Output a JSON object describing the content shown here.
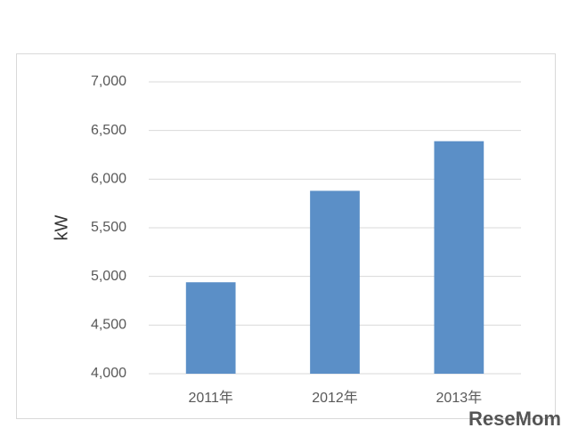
{
  "chart_data": {
    "type": "bar",
    "y_label": "kW",
    "categories": [
      "2011年",
      "2012年",
      "2013年"
    ],
    "values": [
      4940,
      5880,
      6390
    ],
    "color": "#5b8fc7",
    "ylim": [
      4000,
      7000
    ],
    "yticks": [
      {
        "value": 4000,
        "label": "4,000"
      },
      {
        "value": 4500,
        "label": "4,500"
      },
      {
        "value": 5000,
        "label": "5,000"
      },
      {
        "value": 5500,
        "label": "5,500"
      },
      {
        "value": 6000,
        "label": "6,000"
      },
      {
        "value": 6500,
        "label": "6,500"
      },
      {
        "value": 7000,
        "label": "7,000"
      }
    ],
    "grid": true
  },
  "watermark": "ReseMom"
}
